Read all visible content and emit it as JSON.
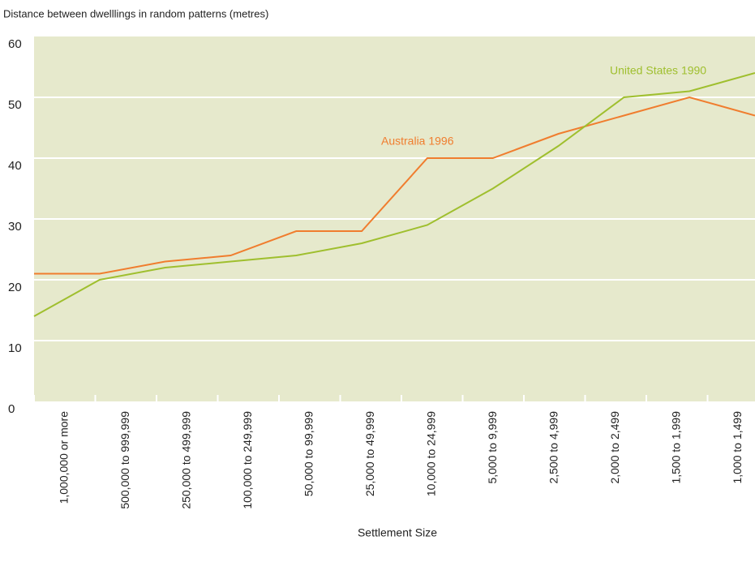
{
  "chart_data": {
    "type": "line",
    "title": "Distance between dwelllings in random patterns (metres)",
    "x_label": "Settlement Size",
    "categories": [
      "1,000,000 or more",
      "500,000 to 999,999",
      "250,000 to 499,999",
      "100,000 to 249,999",
      "50,000 to 99,999",
      "25,000 to 49,999",
      "10,000 to 24,999",
      "5,000 to 9,999",
      "2,500 to 4,999",
      "2,000 to 2,499",
      "1,500 to 1,999",
      "1,000 to 1,499"
    ],
    "series": [
      {
        "name": "Australia 1996",
        "color": "#f07d2e",
        "values": [
          21,
          21,
          23,
          24,
          28,
          28,
          40,
          40,
          44,
          47,
          50,
          47
        ]
      },
      {
        "name": "United States 1990",
        "color": "#9fbf2e",
        "values": [
          14,
          20,
          22,
          23,
          24,
          26,
          29,
          35,
          42,
          50,
          51,
          54
        ]
      }
    ],
    "ylim": [
      0,
      60
    ],
    "yticks": [
      0,
      10,
      20,
      30,
      40,
      50,
      60
    ],
    "grid": true
  }
}
